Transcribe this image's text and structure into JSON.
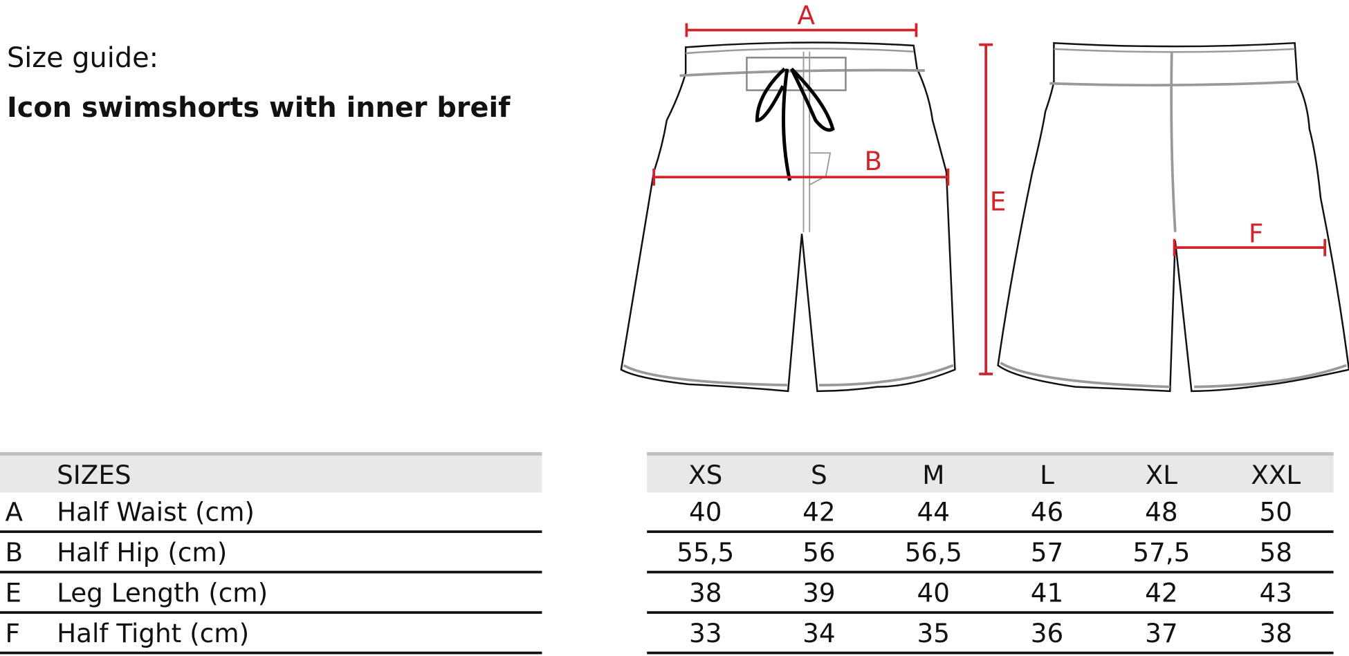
{
  "heading": {
    "guide_label": "Size guide:",
    "product_title": "Icon swimshorts with inner breif"
  },
  "diagram": {
    "measure_labels": {
      "A": "A",
      "B": "B",
      "E": "E",
      "F": "F"
    },
    "measure_color": "#d2232a",
    "views": [
      "front",
      "back"
    ]
  },
  "table": {
    "header_label": "SIZES",
    "sizes": [
      "XS",
      "S",
      "M",
      "L",
      "XL",
      "XXL"
    ],
    "rows": [
      {
        "code": "A",
        "label": "Half Waist (cm)",
        "values": [
          "40",
          "42",
          "44",
          "46",
          "48",
          "50"
        ]
      },
      {
        "code": "B",
        "label": "Half Hip (cm)",
        "values": [
          "55,5",
          "56",
          "56,5",
          "57",
          "57,5",
          "58"
        ]
      },
      {
        "code": "E",
        "label": "Leg Length (cm)",
        "values": [
          "38",
          "39",
          "40",
          "41",
          "42",
          "43"
        ]
      },
      {
        "code": "F",
        "label": "Half Tight (cm)",
        "values": [
          "33",
          "34",
          "35",
          "36",
          "37",
          "38"
        ]
      }
    ]
  }
}
